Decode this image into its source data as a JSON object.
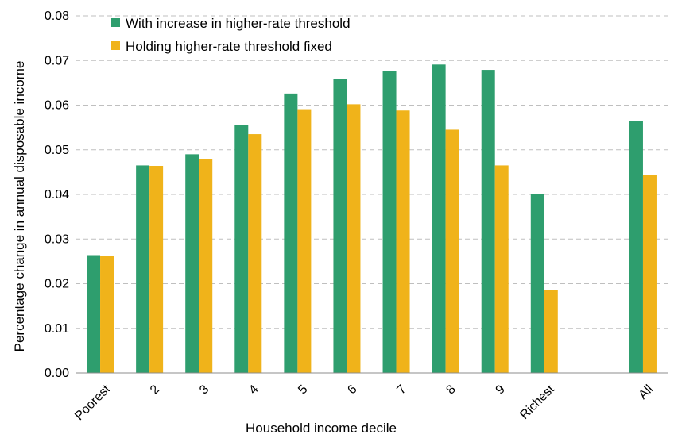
{
  "chart_data": {
    "type": "bar",
    "title": "",
    "xlabel": "Household income decile",
    "ylabel": "Percentage change in annual disposable income",
    "categories": [
      "Poorest",
      "2",
      "3",
      "4",
      "5",
      "6",
      "7",
      "8",
      "9",
      "Richest",
      "",
      "All"
    ],
    "series": [
      {
        "name": "With increase in higher-rate threshold",
        "color": "#2e9e6e",
        "values": [
          0.0264,
          0.0465,
          0.049,
          0.0556,
          0.0626,
          0.0659,
          0.0676,
          0.0691,
          0.0679,
          0.04,
          null,
          0.0565
        ]
      },
      {
        "name": "Holding higher-rate threshold fixed",
        "color": "#f0b31a",
        "values": [
          0.0263,
          0.0464,
          0.048,
          0.0535,
          0.0591,
          0.0602,
          0.0588,
          0.0545,
          0.0465,
          0.0186,
          null,
          0.0443
        ]
      }
    ],
    "ylim": [
      0,
      0.08
    ],
    "yticks": [
      "0.00",
      "0.01",
      "0.02",
      "0.03",
      "0.04",
      "0.05",
      "0.06",
      "0.07",
      "0.08"
    ],
    "grid": true,
    "legend_position": "top-left"
  }
}
